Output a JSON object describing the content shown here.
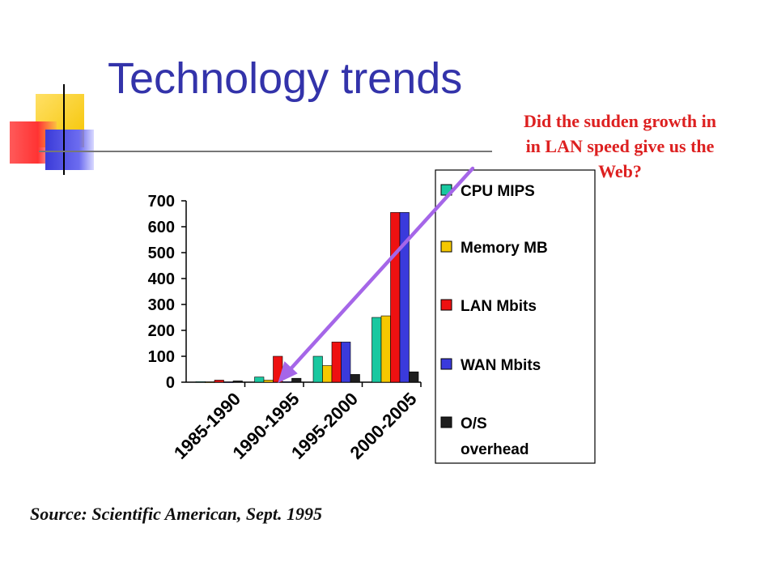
{
  "slide": {
    "title": "Technology trends",
    "callout_lines": [
      "Did the sudden growth in",
      "in LAN speed give us the",
      "Web?"
    ],
    "source": "Source: Scientific American, Sept. 1995",
    "colors": {
      "title": "#3333aa",
      "callout": "#dd2020",
      "arrow": "#a566e8"
    }
  },
  "chart_data": {
    "type": "bar",
    "categories": [
      "1985-1990",
      "1990-1995",
      "1995-2000",
      "2000-2005"
    ],
    "ylim": [
      0,
      700
    ],
    "yticks": [
      0,
      100,
      200,
      300,
      400,
      500,
      600,
      700
    ],
    "grid": false,
    "legend_position": "right",
    "series": [
      {
        "name": "CPU MIPS",
        "legend_lines": [
          "CPU MIPS"
        ],
        "color": "#19c8a0",
        "values": [
          2,
          20,
          100,
          250
        ]
      },
      {
        "name": "Memory MB",
        "legend_lines": [
          "Memory MB"
        ],
        "color": "#f5c800",
        "values": [
          1,
          8,
          64,
          256
        ]
      },
      {
        "name": "LAN Mbits",
        "legend_lines": [
          "LAN Mbits"
        ],
        "color": "#ee1111",
        "values": [
          8,
          100,
          155,
          655
        ]
      },
      {
        "name": "WAN Mbits",
        "legend_lines": [
          "WAN Mbits"
        ],
        "color": "#3a3adc",
        "values": [
          1,
          2,
          155,
          655
        ]
      },
      {
        "name": "O/S overhead",
        "legend_lines": [
          "O/S",
          "overhead"
        ],
        "color": "#1e1e1e",
        "values": [
          5,
          15,
          30,
          40
        ]
      }
    ]
  }
}
